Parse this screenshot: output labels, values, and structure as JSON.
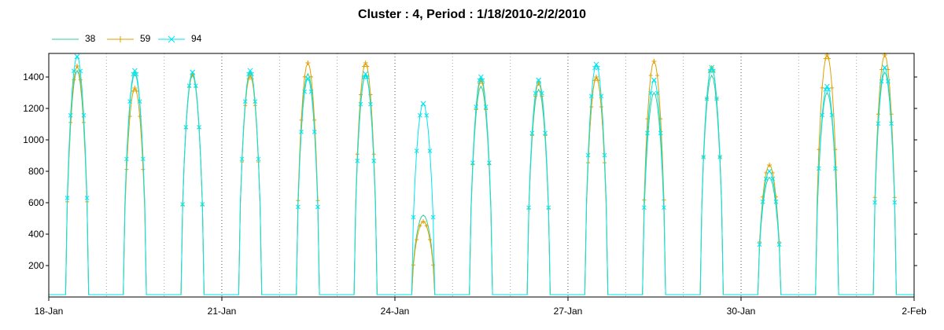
{
  "chart_data": {
    "type": "line",
    "title": "Cluster : 4, Period : 1/18/2010-2/2/2010",
    "xlabel": "",
    "ylabel": "",
    "x_range": [
      "2010-01-18",
      "2010-02-02"
    ],
    "x_ticks": [
      "18-Jan",
      "21-Jan",
      "24-Jan",
      "27-Jan",
      "30-Jan",
      "2-Feb"
    ],
    "y_ticks": [
      200,
      400,
      600,
      800,
      1000,
      1200,
      1400
    ],
    "ylim": [
      0,
      1550
    ],
    "grid": true,
    "legend": "top-left",
    "series": [
      {
        "name": "38",
        "color": "#2ecf9a",
        "marker": "none",
        "days": [
          {
            "date": "2010-01-18",
            "peak": 1440
          },
          {
            "date": "2010-01-19",
            "peak": 1420
          },
          {
            "date": "2010-01-20",
            "peak": 1410
          },
          {
            "date": "2010-01-21",
            "peak": 1430
          },
          {
            "date": "2010-01-22",
            "peak": 1420
          },
          {
            "date": "2010-01-23",
            "peak": 1410
          },
          {
            "date": "2010-01-24",
            "peak": 520
          },
          {
            "date": "2010-01-25",
            "peak": 1340
          },
          {
            "date": "2010-01-26",
            "peak": 1320
          },
          {
            "date": "2010-01-27",
            "peak": 1400
          },
          {
            "date": "2010-01-28",
            "peak": 1300
          },
          {
            "date": "2010-01-29",
            "peak": 1410
          },
          {
            "date": "2010-01-30",
            "peak": 760
          },
          {
            "date": "2010-01-31",
            "peak": 1300
          },
          {
            "date": "2010-02-01",
            "peak": 1430
          }
        ]
      },
      {
        "name": "59",
        "color": "#e0a000",
        "marker": "+",
        "days": [
          {
            "date": "2010-01-18",
            "peak": 1470
          },
          {
            "date": "2010-01-19",
            "peak": 1330
          },
          {
            "date": "2010-01-20",
            "peak": 1420
          },
          {
            "date": "2010-01-21",
            "peak": 1410
          },
          {
            "date": "2010-01-22",
            "peak": 1490
          },
          {
            "date": "2010-01-23",
            "peak": 1490
          },
          {
            "date": "2010-01-24",
            "peak": 480
          },
          {
            "date": "2010-01-25",
            "peak": 1380
          },
          {
            "date": "2010-01-26",
            "peak": 1360
          },
          {
            "date": "2010-01-27",
            "peak": 1400
          },
          {
            "date": "2010-01-28",
            "peak": 1500
          },
          {
            "date": "2010-01-29",
            "peak": 1460
          },
          {
            "date": "2010-01-30",
            "peak": 840
          },
          {
            "date": "2010-01-31",
            "peak": 1540
          },
          {
            "date": "2010-02-01",
            "peak": 1540
          }
        ]
      },
      {
        "name": "94",
        "color": "#00e5ee",
        "marker": "x",
        "days": [
          {
            "date": "2010-01-18",
            "peak": 1530
          },
          {
            "date": "2010-01-19",
            "peak": 1440
          },
          {
            "date": "2010-01-20",
            "peak": 1430
          },
          {
            "date": "2010-01-21",
            "peak": 1440
          },
          {
            "date": "2010-01-22",
            "peak": 1390
          },
          {
            "date": "2010-01-23",
            "peak": 1420
          },
          {
            "date": "2010-01-24",
            "peak": 1230
          },
          {
            "date": "2010-01-25",
            "peak": 1400
          },
          {
            "date": "2010-01-26",
            "peak": 1380
          },
          {
            "date": "2010-01-27",
            "peak": 1480
          },
          {
            "date": "2010-01-28",
            "peak": 1380
          },
          {
            "date": "2010-01-29",
            "peak": 1460
          },
          {
            "date": "2010-01-30",
            "peak": 800
          },
          {
            "date": "2010-01-31",
            "peak": 1340
          },
          {
            "date": "2010-02-01",
            "peak": 1460
          }
        ]
      }
    ]
  }
}
